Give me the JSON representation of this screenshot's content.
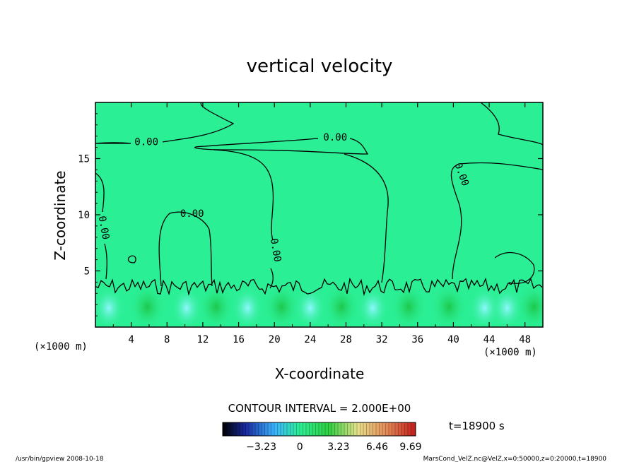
{
  "chart_data": {
    "type": "heatmap",
    "title": "vertical velocity",
    "xlabel": "X-coordinate",
    "ylabel": "Z-coordinate",
    "x_unit": "(×1000 m)",
    "y_unit": "(×1000 m)",
    "xlim": [
      0,
      50
    ],
    "ylim": [
      0,
      20
    ],
    "x_ticks": [
      4,
      8,
      12,
      16,
      20,
      24,
      28,
      32,
      36,
      40,
      44,
      48
    ],
    "y_ticks": [
      5,
      10,
      15
    ],
    "contour_interval_text": "CONTOUR INTERVAL = 2.000E+00",
    "contour_labels": [
      {
        "text": "0.00",
        "x": 5.7,
        "z": 16.2
      },
      {
        "text": "0.00",
        "x": 26.8,
        "z": 16.6
      },
      {
        "text": "0.00",
        "x": 10.8,
        "z": 9.8
      },
      {
        "text": "0.00",
        "x": 0.6,
        "z": 8.8
      },
      {
        "text": "0.00",
        "x": 19.8,
        "z": 6.8
      },
      {
        "text": "0.00",
        "x": 40.6,
        "z": 13.5
      }
    ],
    "colorbar": {
      "tick_labels": [
        "−3.23",
        "0",
        "3.23",
        "6.46",
        "9.69"
      ],
      "range": [
        -6.46,
        9.69
      ]
    },
    "time_label": "t=18900 s",
    "footer_left": "/usr/bin/gpview   2008-10-18",
    "footer_right": "MarsCond_VelZ.nc@VelZ,x=0:50000,z=0:20000,t=18900",
    "colors": {
      "background_field": "#2bef95",
      "boundary_layer_up": "#22d45a",
      "boundary_layer_down": "#6ff5f0"
    }
  }
}
